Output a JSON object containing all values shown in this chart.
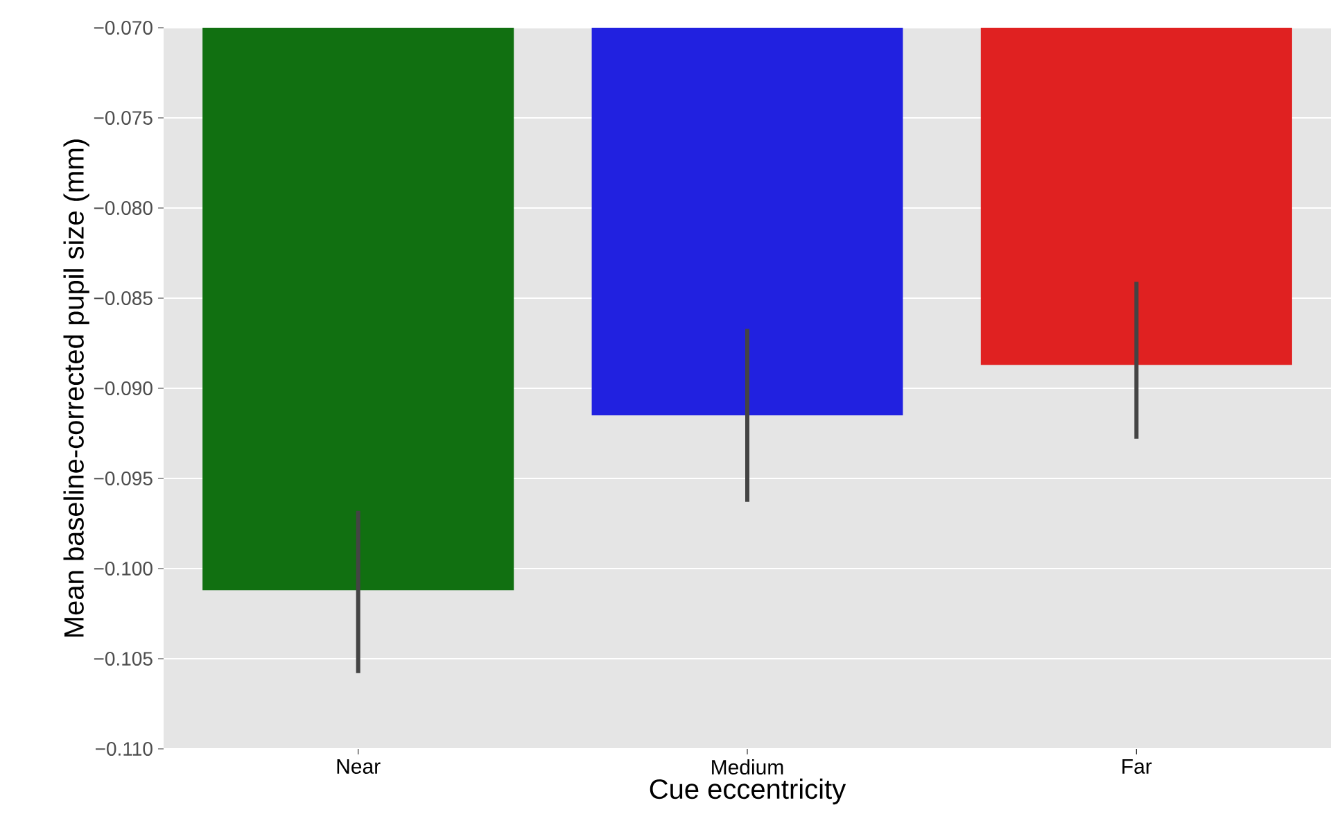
{
  "chart_data": {
    "type": "bar",
    "xlabel": "Cue eccentricity",
    "ylabel": "Mean baseline-corrected pupil size (mm)",
    "categories": [
      "Near",
      "Medium",
      "Far"
    ],
    "values": [
      -0.1012,
      -0.0915,
      -0.0887
    ],
    "colors": [
      "#117011",
      "#2121e0",
      "#e02121"
    ],
    "errors": [
      [
        -0.1058,
        -0.0968
      ],
      [
        -0.0963,
        -0.0867
      ],
      [
        -0.0928,
        -0.0841
      ]
    ],
    "ylim": [
      -0.11,
      -0.07
    ],
    "yticks": [
      {
        "value": -0.11,
        "label": "−0.110"
      },
      {
        "value": -0.105,
        "label": "−0.105"
      },
      {
        "value": -0.1,
        "label": "−0.100"
      },
      {
        "value": -0.095,
        "label": "−0.095"
      },
      {
        "value": -0.09,
        "label": "−0.090"
      },
      {
        "value": -0.085,
        "label": "−0.085"
      },
      {
        "value": -0.08,
        "label": "−0.080"
      },
      {
        "value": -0.075,
        "label": "−0.075"
      },
      {
        "value": -0.07,
        "label": "−0.070"
      }
    ],
    "grid": "y"
  }
}
